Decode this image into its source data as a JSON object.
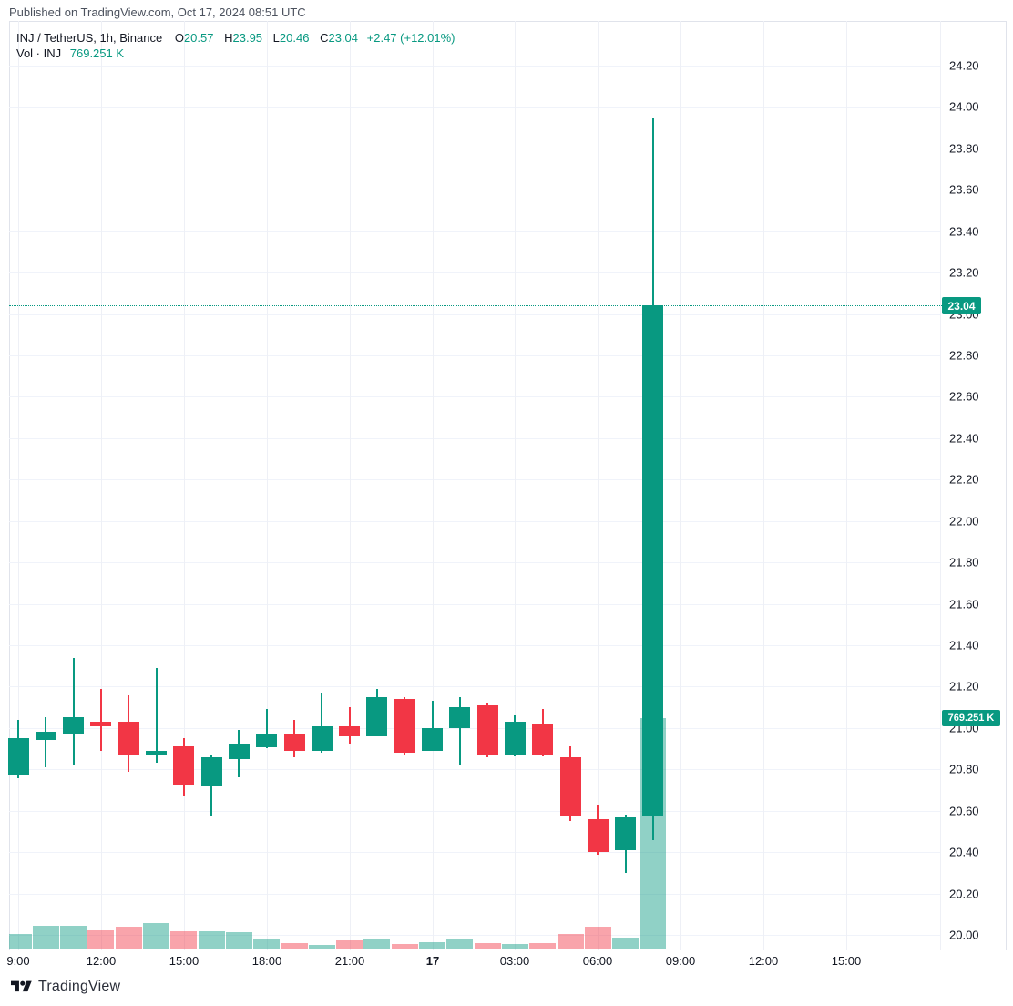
{
  "header": {
    "published": "Published on TradingView.com, Oct 17, 2024 08:51 UTC"
  },
  "legend": {
    "title": "INJ / TetherUS, 1h, Binance",
    "o_label": "O",
    "o_value": "20.57",
    "h_label": "H",
    "h_value": "23.95",
    "l_label": "L",
    "l_value": "20.46",
    "c_label": "C",
    "c_value": "23.04",
    "change": "+2.47 (+12.01%)",
    "vol_label": "Vol · INJ",
    "vol_value": "769.251 K"
  },
  "price_scale": {
    "price_badge": "23.04",
    "volume_badge": "769.251 K"
  },
  "footer": {
    "brand": "TradingView"
  },
  "colors": {
    "up": "#089981",
    "down": "#f23645",
    "volume_up": "rgba(8,153,129,0.45)",
    "volume_down": "rgba(242,54,69,0.45)",
    "grid": "#f0f3fa",
    "border": "#e0e3eb",
    "text": "#131722",
    "badge_bg": "#089981"
  },
  "chart_data": {
    "type": "candlestick",
    "title": "INJ / TetherUS, 1h, Binance",
    "interval": "1h",
    "exchange": "Binance",
    "hours": [
      "09:00",
      "10:00",
      "11:00",
      "12:00",
      "13:00",
      "14:00",
      "15:00",
      "16:00",
      "17:00",
      "18:00",
      "19:00",
      "20:00",
      "21:00",
      "22:00",
      "23:00",
      "00:00",
      "01:00",
      "02:00",
      "03:00",
      "04:00",
      "05:00",
      "06:00",
      "07:00",
      "08:00"
    ],
    "open": [
      20.77,
      20.94,
      20.97,
      21.03,
      21.03,
      20.87,
      20.91,
      20.72,
      20.85,
      20.91,
      20.97,
      20.89,
      21.01,
      20.96,
      21.14,
      20.89,
      21.0,
      21.11,
      20.87,
      21.02,
      20.86,
      20.56,
      20.41,
      20.57
    ],
    "high": [
      21.04,
      21.05,
      21.34,
      21.19,
      21.16,
      21.29,
      20.95,
      20.87,
      20.99,
      21.09,
      21.04,
      21.17,
      21.1,
      21.19,
      21.15,
      21.13,
      21.15,
      21.12,
      21.06,
      21.09,
      20.91,
      20.63,
      20.58,
      23.95
    ],
    "low": [
      20.76,
      20.81,
      20.82,
      20.89,
      20.79,
      20.83,
      20.67,
      20.57,
      20.76,
      20.9,
      20.86,
      20.88,
      20.92,
      20.96,
      20.87,
      20.89,
      20.82,
      20.86,
      20.86,
      20.86,
      20.55,
      20.39,
      20.3,
      20.46
    ],
    "close": [
      20.95,
      20.98,
      21.05,
      21.01,
      20.87,
      20.89,
      20.72,
      20.86,
      20.92,
      20.97,
      20.89,
      21.01,
      20.96,
      21.15,
      20.88,
      21.0,
      21.1,
      20.87,
      21.03,
      20.87,
      20.58,
      20.4,
      20.57,
      23.04
    ],
    "volume_k": [
      49,
      76,
      76,
      61,
      73,
      85,
      58,
      58,
      55,
      30,
      18,
      12,
      27,
      33,
      15,
      21,
      30,
      18,
      15,
      18,
      49,
      73,
      36,
      769.251
    ],
    "last_price": 23.04,
    "last_volume_k": 769.251,
    "price_line": 23.04,
    "ylim": [
      20.0,
      24.2
    ],
    "grid": true,
    "price_ticks": [
      24.2,
      24.0,
      23.8,
      23.6,
      23.4,
      23.2,
      23.0,
      22.8,
      22.6,
      22.4,
      22.2,
      22.0,
      21.8,
      21.6,
      21.4,
      21.2,
      21.0,
      20.8,
      20.6,
      20.4,
      20.2,
      20.0
    ],
    "time_ticks": [
      {
        "text": "9:00",
        "slot": 0
      },
      {
        "text": "12:00",
        "slot": 3
      },
      {
        "text": "15:00",
        "slot": 6
      },
      {
        "text": "18:00",
        "slot": 9
      },
      {
        "text": "21:00",
        "slot": 12
      },
      {
        "text": "17",
        "slot": 15,
        "bold": true
      },
      {
        "text": "03:00",
        "slot": 18
      },
      {
        "text": "06:00",
        "slot": 21
      },
      {
        "text": "09:00",
        "slot": 24
      },
      {
        "text": "12:00",
        "slot": 27
      },
      {
        "text": "15:00",
        "slot": 30
      }
    ]
  }
}
